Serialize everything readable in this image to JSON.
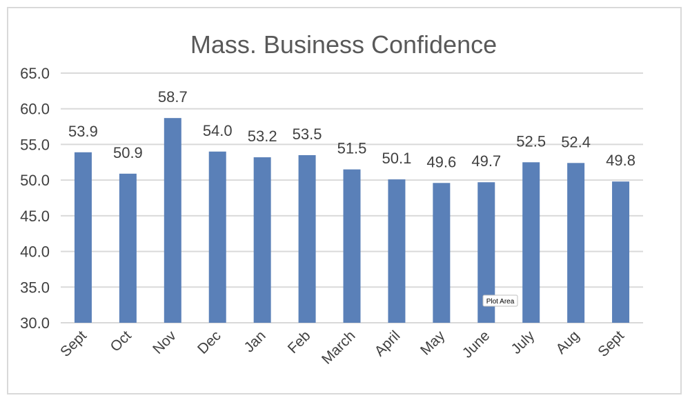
{
  "chart_data": {
    "type": "bar",
    "title": "Mass. Business Confidence",
    "xlabel": "",
    "ylabel": "",
    "ylim": [
      30.0,
      65.0
    ],
    "yticks": [
      "30.0",
      "35.0",
      "40.0",
      "45.0",
      "50.0",
      "55.0",
      "60.0",
      "65.0"
    ],
    "categories": [
      "Sept",
      "Oct",
      "Nov",
      "Dec",
      "Jan",
      "Feb",
      "March",
      "April",
      "May",
      "June",
      "July",
      "Aug",
      "Sept"
    ],
    "values": [
      53.9,
      50.9,
      58.7,
      54.0,
      53.2,
      53.5,
      51.5,
      50.1,
      49.6,
      49.7,
      52.5,
      52.4,
      49.8
    ],
    "data_labels": [
      "53.9",
      "50.9",
      "58.7",
      "54.0",
      "53.2",
      "53.5",
      "51.5",
      "50.1",
      "49.6",
      "49.7",
      "52.5",
      "52.4",
      "49.8"
    ],
    "grid": true,
    "legend": "none",
    "bar_color": "#5a80b8",
    "grid_color": "#d9d9d9"
  },
  "tooltip": {
    "text": "Plot Area"
  }
}
